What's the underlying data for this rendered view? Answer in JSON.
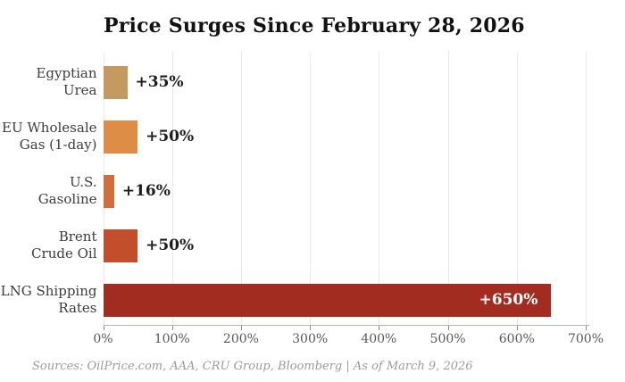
{
  "title": "Price Surges Since February 28, 2026",
  "source_note": "Sources: OilPrice.com, AAA, CRU Group, Bloomberg  |  As of March 9, 2026",
  "colors": {
    "background": "#ffffff",
    "title_text": "#121212",
    "category_text": "#3d3d3d",
    "value_text": "#1d1d1d",
    "value_text_inside": "#ffffff",
    "tick_text": "#595959",
    "gridline": "#e9e9e9",
    "axis_line": "#b5b5b5",
    "source_text": "#9b9b9b"
  },
  "chart_data": {
    "type": "bar",
    "orientation": "horizontal",
    "title": "Price Surges Since February 28, 2026",
    "categories": [
      "Egyptian Urea",
      "EU Wholesale Gas (1-day)",
      "U.S. Gasoline",
      "Brent Crude Oil",
      "LNG Shipping Rates"
    ],
    "category_lines": [
      "Egyptian\nUrea",
      "EU Wholesale\nGas (1-day)",
      "U.S.\nGasoline",
      "Brent\nCrude Oil",
      "LNG Shipping\nRates"
    ],
    "values": [
      35,
      50,
      16,
      50,
      650
    ],
    "value_labels": [
      "+35%",
      "+50%",
      "+16%",
      "+50%",
      "+650%"
    ],
    "bar_colors": [
      "#c49a60",
      "#dd8d45",
      "#d06f3a",
      "#c24e2b",
      "#a22c20"
    ],
    "value_label_placement": [
      "outside",
      "outside",
      "outside",
      "outside",
      "inside"
    ],
    "xlabel": "",
    "ylabel": "",
    "xlim": [
      0,
      700
    ],
    "x_ticks": [
      0,
      100,
      200,
      300,
      400,
      500,
      600,
      700
    ],
    "x_tick_labels": [
      "0%",
      "100%",
      "200%",
      "300%",
      "400%",
      "500%",
      "600%",
      "700%"
    ],
    "grid": "vertical",
    "legend": "none"
  }
}
